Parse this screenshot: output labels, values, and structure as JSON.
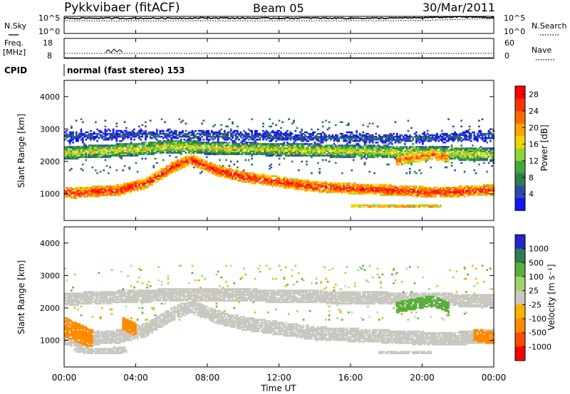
{
  "header": {
    "station": "Pykkvibaer (fitACF)",
    "beam": "Beam 05",
    "date": "30/Mar/2011"
  },
  "noise_panel": {
    "left_label": "N.Sky",
    "right_label": "N.Search",
    "left_ticks": [
      "10^5",
      "10^0"
    ],
    "right_ticks": [
      "10^5",
      "10^0"
    ]
  },
  "freq_panel": {
    "left_label_1": "Freq.",
    "left_label_2": "[MHz]",
    "right_label": "Nave",
    "left_ticks": [
      "18",
      "8"
    ],
    "right_ticks": [
      "60",
      "0"
    ]
  },
  "cpid": {
    "label": "CPID",
    "value": "normal (fast stereo) 153"
  },
  "x_axis": {
    "label": "Time UT",
    "ticks": [
      "00:00",
      "04:00",
      "08:00",
      "12:00",
      "16:00",
      "20:00",
      "00:00"
    ]
  },
  "colors": {
    "power": [
      "#1414ff",
      "#2e4aa8",
      "#2e7d4f",
      "#43a838",
      "#8ed43a",
      "#f2d500",
      "#ffa500",
      "#ff6a00",
      "#ff3300",
      "#ff0000"
    ],
    "velocity": [
      "#2424c8",
      "#2e7d4f",
      "#5aae3c",
      "#a0d46a",
      "#c8c8c0",
      "#ffb000",
      "#ff8a00",
      "#ff4a00",
      "#ff0000"
    ]
  },
  "chart_data": [
    {
      "type": "line",
      "title": "",
      "panel": "noise",
      "xlabel": "",
      "ylabel": "N.Sky",
      "y2label": "N.Search",
      "ylog": true,
      "ylim": [
        1,
        100000
      ],
      "grid": false,
      "series": [
        {
          "name": "N.Sky",
          "style": "solid",
          "x": [
            0,
            2,
            4,
            6,
            8,
            10,
            12,
            14,
            16,
            18,
            20,
            22,
            24
          ],
          "values": [
            30000,
            30000,
            28000,
            30000,
            35000,
            30000,
            30000,
            32000,
            30000,
            30000,
            40000,
            70000,
            45000
          ]
        },
        {
          "name": "N.Search",
          "style": "dotted",
          "x": [
            0,
            4,
            8,
            12,
            16,
            20,
            24
          ],
          "values": [
            5000,
            4500,
            5000,
            5000,
            5000,
            6000,
            20000
          ]
        }
      ]
    },
    {
      "type": "line",
      "title": "",
      "panel": "frequency",
      "xlabel": "",
      "ylabel": "Freq. [MHz]",
      "y2label": "Nave",
      "ylim": [
        8,
        18
      ],
      "y2lim": [
        0,
        60
      ],
      "grid": false,
      "series": [
        {
          "name": "Freq.",
          "style": "solid",
          "x": [
            0,
            24
          ],
          "values": [
            8.1,
            8.1
          ]
        },
        {
          "name": "Nave",
          "style": "dotted",
          "x": [
            0,
            24
          ],
          "values": [
            15,
            15
          ]
        }
      ]
    },
    {
      "type": "heatmap",
      "title": "",
      "panel": "power",
      "xlabel": "",
      "ylabel": "Slant Range [km]",
      "xlim": [
        0,
        24
      ],
      "ylim": [
        180,
        4500
      ],
      "yticks": [
        "1000",
        "2000",
        "3000",
        "4000"
      ],
      "colorbar_label": "Power [dB]",
      "colorbar_ticks": [
        "4",
        "8",
        "12",
        "16",
        "20",
        "24",
        "28"
      ],
      "colorbar_range": [
        0,
        30
      ],
      "grid": false,
      "bands": [
        {
          "t": [
            0.0,
            0.5,
            1.5,
            3.0,
            4.5,
            6.0,
            7.0,
            8.5,
            10.0,
            12.0,
            14.0,
            16.0,
            18.0,
            20.0,
            22.0,
            23.5,
            24.0
          ],
          "center": [
            1050,
            1000,
            1050,
            1100,
            1300,
            1800,
            2050,
            1700,
            1500,
            1350,
            1200,
            1150,
            1100,
            1050,
            1050,
            1100,
            1100
          ],
          "width": 330,
          "peak_db": 27
        },
        {
          "t": [
            0.0,
            2.0,
            4.0,
            6.0,
            8.0,
            12.0,
            16.0,
            20.0,
            24.0
          ],
          "center": [
            2250,
            2300,
            2350,
            2450,
            2400,
            2350,
            2300,
            2250,
            2200
          ],
          "width": 400,
          "peak_db": 16
        },
        {
          "t": [
            0.0,
            4.0,
            8.0,
            12.0,
            16.0,
            20.0,
            24.0
          ],
          "center": [
            2750,
            2800,
            2800,
            2750,
            2700,
            2700,
            2800
          ],
          "width": 400,
          "peak_db": 6
        },
        {
          "t": [
            18.5,
            19.5,
            20.5,
            21.5
          ],
          "center": [
            2000,
            2100,
            2200,
            2100
          ],
          "width": 300,
          "peak_db": 24
        },
        {
          "t": [
            16.0,
            17.5,
            19.0,
            20.5,
            21.0
          ],
          "center": [
            600,
            600,
            600,
            600,
            600
          ],
          "width": 110,
          "peak_db": 22
        }
      ]
    },
    {
      "type": "heatmap",
      "title": "",
      "panel": "velocity",
      "xlabel": "Time UT",
      "ylabel": "Slant Range [km]",
      "xlim": [
        0,
        24
      ],
      "ylim": [
        180,
        4500
      ],
      "yticks": [
        "1000",
        "2000",
        "3000",
        "4000"
      ],
      "colorbar_label": "Velocity [m s⁻¹]",
      "colorbar_ticks": [
        "1000",
        "500",
        "100",
        "25",
        "-25",
        "-100",
        "-500",
        "-1000"
      ],
      "grid": false,
      "bands": [
        {
          "t": [
            0.0,
            0.5,
            1.5,
            3.0,
            4.5,
            6.0,
            7.0,
            8.5,
            10.0,
            12.0,
            14.0,
            16.0,
            18.0,
            20.0,
            22.0,
            23.5,
            24.0
          ],
          "center": [
            1050,
            1000,
            1050,
            1100,
            1300,
            1800,
            2050,
            1700,
            1500,
            1350,
            1200,
            1150,
            1100,
            1050,
            1050,
            1100,
            1100
          ],
          "width": 420,
          "velocity": 0
        },
        {
          "t": [
            0.0,
            4.0,
            8.0,
            12.0,
            16.0,
            20.0,
            24.0
          ],
          "center": [
            2250,
            2350,
            2400,
            2350,
            2300,
            2250,
            2200
          ],
          "width": 400,
          "velocity": 0
        },
        {
          "t": [
            0.0,
            0.8,
            1.6
          ],
          "center": [
            1400,
            1200,
            1000
          ],
          "width": 600,
          "velocity": -300
        },
        {
          "t": [
            3.2,
            3.6,
            4.0
          ],
          "center": [
            1500,
            1400,
            1300
          ],
          "width": 400,
          "velocity": -150
        },
        {
          "t": [
            22.8,
            23.4,
            24.0
          ],
          "center": [
            1150,
            1100,
            1050
          ],
          "width": 400,
          "velocity": -400
        },
        {
          "t": [
            18.5,
            19.5,
            20.5,
            21.5
          ],
          "center": [
            2000,
            2100,
            2200,
            2000
          ],
          "width": 350,
          "velocity": 200
        },
        {
          "t": [
            0.5,
            1.5,
            2.5,
            3.5
          ],
          "center": [
            750,
            650,
            650,
            700
          ],
          "width": 220,
          "velocity": 0
        },
        {
          "t": [
            17.5,
            18.5,
            19.5,
            20.5
          ],
          "center": [
            600,
            600,
            600,
            600
          ],
          "width": 110,
          "velocity": 0
        }
      ]
    }
  ]
}
